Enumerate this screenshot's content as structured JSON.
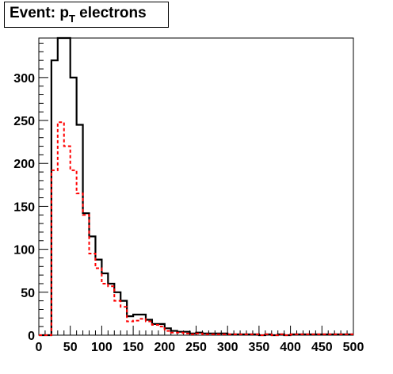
{
  "title": {
    "main": "Event: p",
    "sub": "T",
    "rest": " electrons"
  },
  "chart_data": {
    "type": "histogram",
    "title": "Event: pT electrons",
    "xlim": [
      0,
      500
    ],
    "ylim": [
      0,
      346
    ],
    "x_ticks": [
      0,
      50,
      100,
      150,
      200,
      250,
      300,
      350,
      400,
      450,
      500
    ],
    "y_ticks": [
      0,
      50,
      100,
      150,
      200,
      250,
      300
    ],
    "bin_width": 10,
    "bin_edges_start": 0,
    "series": [
      {
        "style": "solid",
        "color": "#000000",
        "values": [
          0,
          0,
          320,
          346,
          346,
          300,
          245,
          142,
          115,
          88,
          72,
          60,
          50,
          40,
          22,
          24,
          24,
          18,
          13,
          13,
          8,
          5,
          4,
          4,
          2,
          3,
          2,
          2,
          2,
          2,
          1,
          1,
          1,
          1,
          1,
          0,
          1,
          0,
          1,
          0,
          1,
          1,
          1,
          1,
          1,
          1,
          1,
          1,
          1,
          1
        ]
      },
      {
        "style": "dashed",
        "color": "#ff0000",
        "values": [
          0,
          0,
          192,
          248,
          220,
          192,
          165,
          140,
          95,
          78,
          60,
          57,
          40,
          33,
          16,
          17,
          19,
          16,
          12,
          10,
          5,
          3,
          3,
          2,
          1,
          2,
          1,
          1,
          1,
          1,
          1,
          1,
          1,
          1,
          1,
          0,
          1,
          0,
          1,
          0,
          1,
          1,
          1,
          1,
          1,
          1,
          1,
          1,
          1,
          1
        ]
      }
    ]
  }
}
